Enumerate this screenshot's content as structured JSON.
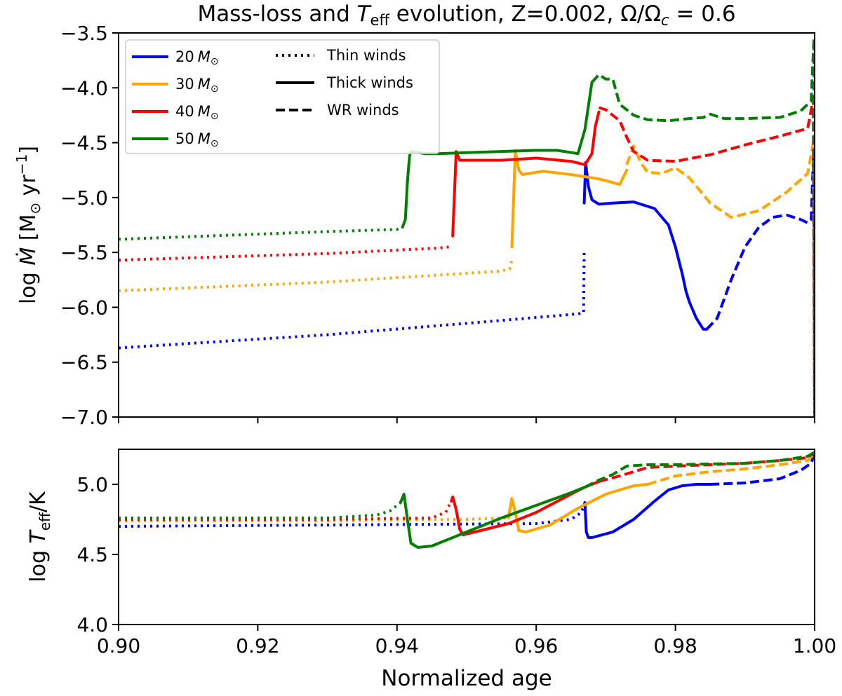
{
  "figure": {
    "title_prefix": "Mass-loss and ",
    "title_T": "T",
    "title_sub": "eff",
    "title_suffix": " evolution, Z=0.002, Ω/Ω",
    "title_c": "c",
    "title_end": " = 0.6",
    "xlabel": "Normalized age"
  },
  "chart_data": [
    {
      "type": "line",
      "panel": "top",
      "ylabel_pre": "log ",
      "ylabel_var": "Ṁ",
      "ylabel_unit": " [M",
      "ylabel_sun": "⊙",
      "ylabel_yr": " yr",
      "ylabel_exp": "−1",
      "ylabel_close": "]",
      "xlim": [
        0.9,
        1.0
      ],
      "ylim": [
        -7.0,
        -3.5
      ],
      "yticks": [
        -7.0,
        -6.5,
        -6.0,
        -5.5,
        -5.0,
        -4.5,
        -4.0,
        -3.5
      ],
      "ytick_labels": [
        "−7.0",
        "−6.5",
        "−6.0",
        "−5.5",
        "−5.0",
        "−4.5",
        "−4.0",
        "−3.5"
      ],
      "xticks": [
        0.9,
        0.92,
        0.94,
        0.96,
        0.98,
        1.0
      ],
      "legend": {
        "placement": "top-left",
        "masses": [
          {
            "num": "20",
            "color": "#0000ff"
          },
          {
            "num": "30",
            "color": "#ffa500"
          },
          {
            "num": "40",
            "color": "#ff0000"
          },
          {
            "num": "50",
            "color": "#008000"
          }
        ],
        "styles": [
          {
            "label": "Thin winds",
            "dash": "dotted"
          },
          {
            "label": "Thick winds",
            "dash": "solid"
          },
          {
            "label": "WR winds",
            "dash": "dashed"
          }
        ]
      },
      "series": [
        {
          "name": "20 M☉",
          "color": "#0000ff",
          "segments": [
            {
              "style": "dotted",
              "x": [
                0.9,
                0.93,
                0.955,
                0.966,
                0.9668,
                0.9669
              ],
              "y": [
                -6.37,
                -6.25,
                -6.12,
                -6.06,
                -6.05,
                -5.47
              ]
            },
            {
              "style": "solid",
              "x": [
                0.9669,
                0.9671,
                0.9675,
                0.968,
                0.969,
                0.971,
                0.974,
                0.977,
                0.979,
                0.98,
                0.981,
                0.9815,
                0.982,
                0.983,
                0.984,
                0.9845
              ],
              "y": [
                -5.05,
                -4.68,
                -4.9,
                -5.02,
                -5.06,
                -5.05,
                -5.04,
                -5.1,
                -5.25,
                -5.45,
                -5.7,
                -5.85,
                -5.95,
                -6.1,
                -6.2,
                -6.2
              ]
            },
            {
              "style": "dashed",
              "x": [
                0.9845,
                0.986,
                0.988,
                0.99,
                0.992,
                0.994,
                0.996,
                0.998,
                0.999,
                0.9995,
                0.9999,
                1.0
              ],
              "y": [
                -6.2,
                -6.1,
                -5.75,
                -5.45,
                -5.27,
                -5.18,
                -5.16,
                -5.2,
                -5.23,
                -5.2,
                -4.5,
                -7.0
              ]
            }
          ]
        },
        {
          "name": "30 M☉",
          "color": "#ffa500",
          "segments": [
            {
              "style": "dotted",
              "x": [
                0.9,
                0.93,
                0.955,
                0.9562,
                0.9565
              ],
              "y": [
                -5.85,
                -5.77,
                -5.67,
                -5.65,
                -5.57
              ]
            },
            {
              "style": "solid",
              "x": [
                0.9565,
                0.957,
                0.9575,
                0.958,
                0.959,
                0.961,
                0.965,
                0.969,
                0.972,
                0.973
              ],
              "y": [
                -5.45,
                -4.57,
                -4.75,
                -4.79,
                -4.78,
                -4.76,
                -4.79,
                -4.83,
                -4.88,
                -4.75
              ]
            },
            {
              "style": "dashed",
              "x": [
                0.973,
                0.974,
                0.975,
                0.976,
                0.978,
                0.98,
                0.982,
                0.985,
                0.988,
                0.992,
                0.996,
                0.999,
                0.9998,
                1.0
              ],
              "y": [
                -4.7,
                -4.53,
                -4.68,
                -4.77,
                -4.78,
                -4.73,
                -4.82,
                -5.05,
                -5.18,
                -5.12,
                -4.95,
                -4.78,
                -4.5,
                -7.0
              ]
            }
          ]
        },
        {
          "name": "40 M☉",
          "color": "#ff0000",
          "segments": [
            {
              "style": "dotted",
              "x": [
                0.9,
                0.93,
                0.946,
                0.9475
              ],
              "y": [
                -5.57,
                -5.51,
                -5.46,
                -5.45
              ]
            },
            {
              "style": "solid",
              "x": [
                0.948,
                0.9485,
                0.949,
                0.95,
                0.955,
                0.96,
                0.965,
                0.967,
                0.968,
                0.9685,
                0.969
              ],
              "y": [
                -5.35,
                -4.58,
                -4.66,
                -4.66,
                -4.66,
                -4.64,
                -4.67,
                -4.7,
                -4.6,
                -4.35,
                -4.22
              ]
            },
            {
              "style": "dashed",
              "x": [
                0.969,
                0.97,
                0.971,
                0.972,
                0.973,
                0.974,
                0.976,
                0.98,
                0.985,
                0.99,
                0.995,
                0.999,
                0.9998,
                1.0
              ],
              "y": [
                -4.18,
                -4.2,
                -4.25,
                -4.3,
                -4.45,
                -4.58,
                -4.66,
                -4.67,
                -4.61,
                -4.52,
                -4.44,
                -4.37,
                -4.1,
                -7.0
              ]
            }
          ]
        },
        {
          "name": "50 M☉",
          "color": "#008000",
          "segments": [
            {
              "style": "dotted",
              "x": [
                0.9,
                0.93,
                0.94,
                0.9408
              ],
              "y": [
                -5.38,
                -5.31,
                -5.29,
                -5.27
              ]
            },
            {
              "style": "solid",
              "x": [
                0.9408,
                0.9412,
                0.9415,
                0.9418,
                0.942,
                0.943,
                0.944,
                0.946,
                0.95,
                0.955,
                0.96,
                0.963,
                0.966,
                0.967,
                0.968
              ],
              "y": [
                -5.27,
                -5.2,
                -4.85,
                -4.62,
                -4.58,
                -4.59,
                -4.6,
                -4.6,
                -4.59,
                -4.58,
                -4.57,
                -4.57,
                -4.6,
                -4.38,
                -3.95
              ]
            },
            {
              "style": "dashed",
              "x": [
                0.968,
                0.969,
                0.97,
                0.971,
                0.972,
                0.974,
                0.976,
                0.979,
                0.982,
                0.984,
                0.985,
                0.987,
                0.99,
                0.995,
                0.998,
                0.9995,
                0.9999,
                1.0
              ],
              "y": [
                -3.95,
                -3.88,
                -3.92,
                -3.92,
                -4.15,
                -4.25,
                -4.29,
                -4.3,
                -4.28,
                -4.27,
                -4.24,
                -4.28,
                -4.28,
                -4.27,
                -4.21,
                -4.12,
                -3.55,
                -7.0
              ]
            }
          ]
        }
      ]
    },
    {
      "type": "line",
      "panel": "bottom",
      "ylabel_pre": "log ",
      "ylabel_T": "T",
      "ylabel_sub": "eff",
      "ylabel_post": "/K",
      "xlim": [
        0.9,
        1.0
      ],
      "ylim": [
        4.0,
        5.25
      ],
      "yticks": [
        4.0,
        4.5,
        5.0
      ],
      "ytick_labels": [
        "4.0",
        "4.5",
        "5.0"
      ],
      "xticks": [
        0.9,
        0.92,
        0.94,
        0.96,
        0.98,
        1.0
      ],
      "xtick_labels": [
        "0.90",
        "0.92",
        "0.94",
        "0.96",
        "0.98",
        "1.00"
      ],
      "series": [
        {
          "name": "20 M☉",
          "color": "#0000ff",
          "segments": [
            {
              "style": "dotted",
              "x": [
                0.9,
                0.93,
                0.96,
                0.965,
                0.9665,
                0.967
              ],
              "y": [
                4.7,
                4.71,
                4.72,
                4.75,
                4.8,
                4.87
              ]
            },
            {
              "style": "solid",
              "x": [
                0.967,
                0.9672,
                0.9675,
                0.968,
                0.971,
                0.974,
                0.977,
                0.979,
                0.981,
                0.983,
                0.985
              ],
              "y": [
                4.87,
                4.66,
                4.62,
                4.62,
                4.66,
                4.75,
                4.88,
                4.96,
                4.99,
                5.0,
                5.0
              ]
            },
            {
              "style": "dashed",
              "x": [
                0.985,
                0.99,
                0.995,
                0.998,
                0.9995,
                1.0
              ],
              "y": [
                5.0,
                5.01,
                5.04,
                5.1,
                5.15,
                5.22
              ]
            }
          ]
        },
        {
          "name": "30 M☉",
          "color": "#ffa500",
          "segments": [
            {
              "style": "dotted",
              "x": [
                0.9,
                0.93,
                0.95,
                0.956
              ],
              "y": [
                4.74,
                4.74,
                4.75,
                4.76
              ]
            },
            {
              "style": "solid",
              "x": [
                0.956,
                0.9565,
                0.957,
                0.9575,
                0.9585,
                0.962,
                0.966,
                0.97,
                0.974,
                0.976
              ],
              "y": [
                4.76,
                4.9,
                4.8,
                4.67,
                4.66,
                4.71,
                4.83,
                4.93,
                4.99,
                5.0
              ]
            },
            {
              "style": "dashed",
              "x": [
                0.976,
                0.98,
                0.985,
                0.99,
                0.995,
                0.999,
                1.0
              ],
              "y": [
                5.0,
                5.06,
                5.09,
                5.11,
                5.14,
                5.17,
                5.22
              ]
            }
          ]
        },
        {
          "name": "40 M☉",
          "color": "#ff0000",
          "segments": [
            {
              "style": "dotted",
              "x": [
                0.9,
                0.93,
                0.945,
                0.947,
                0.9478
              ],
              "y": [
                4.75,
                4.75,
                4.76,
                4.8,
                4.88
              ]
            },
            {
              "style": "solid",
              "x": [
                0.9478,
                0.948,
                0.9485,
                0.949,
                0.9495,
                0.952,
                0.956,
                0.96,
                0.965,
                0.967,
                0.969
              ],
              "y": [
                4.88,
                4.91,
                4.82,
                4.68,
                4.64,
                4.67,
                4.72,
                4.8,
                4.93,
                4.98,
                5.02
              ]
            },
            {
              "style": "dashed",
              "x": [
                0.969,
                0.972,
                0.976,
                0.98,
                0.99,
                0.995,
                0.999,
                1.0
              ],
              "y": [
                5.02,
                5.06,
                5.12,
                5.13,
                5.15,
                5.17,
                5.19,
                5.23
              ]
            }
          ]
        },
        {
          "name": "50 M☉",
          "color": "#008000",
          "segments": [
            {
              "style": "dotted",
              "x": [
                0.9,
                0.93,
                0.937,
                0.939,
                0.9405
              ],
              "y": [
                4.76,
                4.76,
                4.78,
                4.81,
                4.87
              ]
            },
            {
              "style": "solid",
              "x": [
                0.9405,
                0.941,
                0.9415,
                0.942,
                0.943,
                0.945,
                0.95,
                0.955,
                0.96,
                0.965,
                0.967
              ],
              "y": [
                4.87,
                4.93,
                4.75,
                4.58,
                4.55,
                4.56,
                4.66,
                4.76,
                4.85,
                4.94,
                4.98
              ]
            },
            {
              "style": "dashed",
              "x": [
                0.967,
                0.969,
                0.971,
                0.973,
                0.976,
                0.98,
                0.99,
                0.995,
                0.999,
                1.0
              ],
              "y": [
                4.98,
                5.03,
                5.07,
                5.13,
                5.14,
                5.14,
                5.15,
                5.17,
                5.2,
                5.23
              ]
            }
          ]
        }
      ]
    }
  ]
}
